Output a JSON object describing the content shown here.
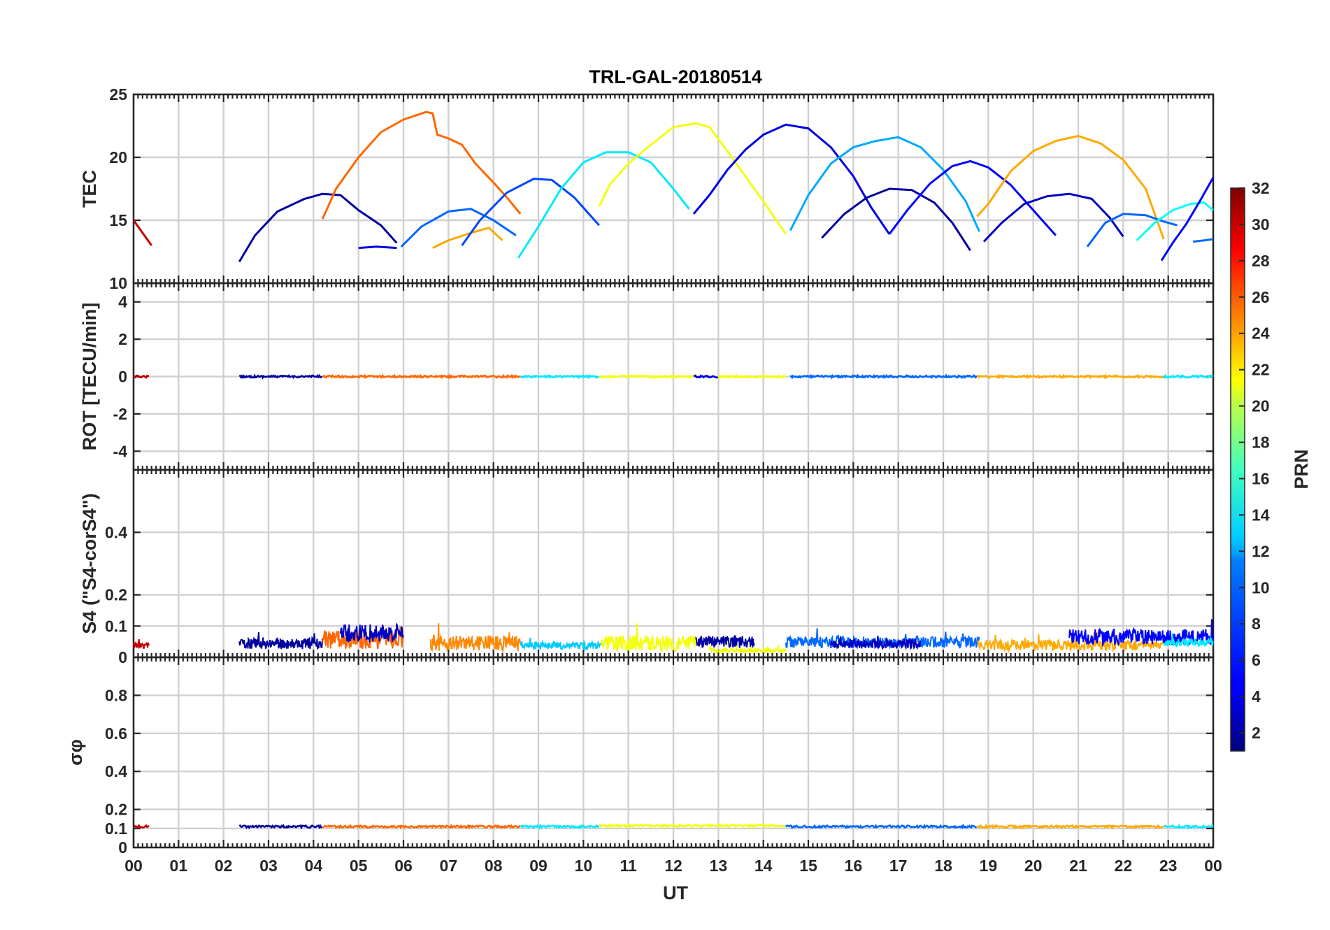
{
  "title": "TRL-GAL-20180514",
  "xlabel": "UT",
  "x_tick_labels": [
    "00",
    "01",
    "02",
    "03",
    "04",
    "05",
    "06",
    "07",
    "08",
    "09",
    "10",
    "11",
    "12",
    "13",
    "14",
    "15",
    "16",
    "17",
    "18",
    "19",
    "20",
    "21",
    "22",
    "23",
    "00"
  ],
  "panels": [
    {
      "ylabel": "TEC",
      "ylim": [
        10,
        25
      ],
      "yticks": [
        10,
        15,
        20,
        25
      ]
    },
    {
      "ylabel": "ROT [TECU/min]",
      "ylim": [
        -5,
        5
      ],
      "yticks": [
        -4,
        -2,
        0,
        2,
        4
      ]
    },
    {
      "ylabel": "S4 (\"S4-corS4\")",
      "ylim": [
        0,
        0.6
      ],
      "yticks": [
        0,
        0.1,
        0.2,
        0.4
      ]
    },
    {
      "ylabel": "σφ",
      "ylim": [
        0,
        1
      ],
      "yticks": [
        0,
        0.1,
        0.2,
        0.4,
        0.6,
        0.8
      ]
    }
  ],
  "colorbar": {
    "label": "PRN",
    "range": [
      1,
      32
    ],
    "ticks": [
      2,
      4,
      6,
      8,
      10,
      12,
      14,
      16,
      18,
      20,
      22,
      24,
      26,
      28,
      30,
      32
    ],
    "colormap": "jet"
  },
  "chart_data": {
    "type": "line",
    "title": "TRL-GAL-20180514",
    "xlabel": "UT",
    "x_range_hours": [
      0,
      24
    ],
    "grid": true,
    "colorbar_label": "PRN",
    "colorbar_range": [
      1,
      32
    ],
    "tec_arcs": [
      {
        "prn": 30,
        "x": [
          0.0,
          0.4
        ],
        "y": [
          15.0,
          13.0
        ]
      },
      {
        "prn": 2,
        "x": [
          2.35,
          2.7,
          3.2,
          3.8,
          4.2,
          4.6,
          5.0,
          5.5,
          5.85
        ],
        "y": [
          11.7,
          13.8,
          15.7,
          16.7,
          17.1,
          17.0,
          15.8,
          14.6,
          13.2
        ]
      },
      {
        "prn": 25,
        "x": [
          4.2,
          4.5,
          5.0,
          5.5,
          6.0,
          6.5,
          6.65,
          6.75,
          7.0,
          7.3,
          7.6,
          8.0,
          8.3,
          8.6
        ],
        "y": [
          15.1,
          17.5,
          20.0,
          22.0,
          23.0,
          23.6,
          23.5,
          21.8,
          21.5,
          21.0,
          19.5,
          18.0,
          16.8,
          15.5
        ]
      },
      {
        "prn": 4,
        "x": [
          5.0,
          5.4,
          5.85
        ],
        "y": [
          12.8,
          12.9,
          12.8
        ]
      },
      {
        "prn": 8,
        "x": [
          5.95,
          6.4,
          7.0,
          7.5,
          8.0,
          8.5
        ],
        "y": [
          12.9,
          14.5,
          15.7,
          15.9,
          15.0,
          13.8
        ]
      },
      {
        "prn": 23,
        "x": [
          6.65,
          7.0,
          7.5,
          7.9,
          8.2
        ],
        "y": [
          12.8,
          13.4,
          14.0,
          14.4,
          13.4
        ]
      },
      {
        "prn": 7,
        "x": [
          7.3,
          7.7,
          8.3,
          8.9,
          9.3,
          9.8,
          10.35
        ],
        "y": [
          13.0,
          15.0,
          17.2,
          18.3,
          18.2,
          16.8,
          14.6
        ]
      },
      {
        "prn": 12,
        "x": [
          8.55,
          9.0,
          9.5,
          10.0,
          10.5,
          11.0,
          11.5,
          12.0,
          12.35
        ],
        "y": [
          12.0,
          14.5,
          17.5,
          19.6,
          20.4,
          20.4,
          19.6,
          17.5,
          15.9
        ]
      },
      {
        "prn": 20,
        "x": [
          10.35,
          10.6,
          11.0,
          11.5,
          12.0,
          12.5,
          12.8,
          13.2,
          13.6,
          14.0,
          14.5
        ],
        "y": [
          16.1,
          17.9,
          19.5,
          21.0,
          22.4,
          22.7,
          22.4,
          20.5,
          18.5,
          16.5,
          13.9
        ]
      },
      {
        "prn": 4,
        "x": [
          12.45,
          12.8,
          13.2,
          13.6,
          14.0,
          14.5,
          15.0,
          15.5,
          16.0,
          16.4,
          16.8
        ],
        "y": [
          15.5,
          17.0,
          19.0,
          20.6,
          21.8,
          22.6,
          22.3,
          20.8,
          18.5,
          16.0,
          13.9
        ]
      },
      {
        "prn": 10,
        "x": [
          14.6,
          15.0,
          15.5,
          16.0,
          16.5,
          17.0,
          17.5,
          18.0,
          18.5,
          18.8
        ],
        "y": [
          14.2,
          17.0,
          19.5,
          20.8,
          21.3,
          21.6,
          20.8,
          19.0,
          16.5,
          14.1
        ]
      },
      {
        "prn": 2,
        "x": [
          15.3,
          15.8,
          16.3,
          16.8,
          17.3,
          17.8,
          18.2,
          18.6
        ],
        "y": [
          13.6,
          15.5,
          16.8,
          17.5,
          17.4,
          16.4,
          14.8,
          12.6
        ]
      },
      {
        "prn": 5,
        "x": [
          16.8,
          17.2,
          17.7,
          18.2,
          18.6,
          19.0,
          19.5,
          19.9,
          20.5
        ],
        "y": [
          13.9,
          15.8,
          17.9,
          19.3,
          19.7,
          19.2,
          17.8,
          16.2,
          13.8
        ]
      },
      {
        "prn": 23,
        "x": [
          18.75,
          19.0,
          19.5,
          20.0,
          20.5,
          21.0,
          21.5,
          22.0,
          22.5,
          22.9
        ],
        "y": [
          15.3,
          16.3,
          18.9,
          20.5,
          21.3,
          21.7,
          21.1,
          19.8,
          17.5,
          13.5
        ]
      },
      {
        "prn": 3,
        "x": [
          18.9,
          19.3,
          19.8,
          20.3,
          20.8,
          21.3,
          21.7,
          22.0
        ],
        "y": [
          13.3,
          14.8,
          16.3,
          16.9,
          17.1,
          16.7,
          15.2,
          13.7
        ]
      },
      {
        "prn": 8,
        "x": [
          21.2,
          21.6,
          22.0,
          22.5,
          22.9,
          23.2
        ],
        "y": [
          12.9,
          14.8,
          15.5,
          15.4,
          14.9,
          14.6
        ]
      },
      {
        "prn": 13,
        "x": [
          22.3,
          22.7,
          23.1,
          23.5,
          23.8,
          24.0
        ],
        "y": [
          13.4,
          14.8,
          15.8,
          16.3,
          16.4,
          15.8
        ]
      },
      {
        "prn": 5,
        "x": [
          22.85,
          23.1,
          23.4,
          23.7,
          24.0
        ],
        "y": [
          11.8,
          13.2,
          14.7,
          16.5,
          18.4
        ]
      },
      {
        "prn": 8,
        "x": [
          23.55,
          23.8,
          24.0
        ],
        "y": [
          13.3,
          13.4,
          13.5
        ]
      }
    ],
    "rot_segments": [
      {
        "prn": 30,
        "x": [
          0.0,
          0.35
        ],
        "y": [
          0,
          0
        ]
      },
      {
        "prn": 2,
        "x": [
          2.35,
          4.2
        ],
        "y": [
          0,
          0
        ]
      },
      {
        "prn": 25,
        "x": [
          4.2,
          8.6
        ],
        "y": [
          0,
          0
        ]
      },
      {
        "prn": 12,
        "x": [
          8.6,
          10.35
        ],
        "y": [
          0,
          0
        ]
      },
      {
        "prn": 20,
        "x": [
          10.35,
          12.45
        ],
        "y": [
          0,
          0
        ]
      },
      {
        "prn": 4,
        "x": [
          12.45,
          13.0
        ],
        "y": [
          0,
          0
        ]
      },
      {
        "prn": 20,
        "x": [
          13.0,
          14.5
        ],
        "y": [
          0,
          0
        ]
      },
      {
        "prn": 8,
        "x": [
          14.6,
          18.75
        ],
        "y": [
          0,
          0
        ]
      },
      {
        "prn": 23,
        "x": [
          18.75,
          22.9
        ],
        "y": [
          0,
          0
        ]
      },
      {
        "prn": 12,
        "x": [
          22.9,
          24.0
        ],
        "y": [
          0,
          0
        ]
      }
    ],
    "s4_segments": [
      {
        "prn": 30,
        "x": [
          0.0,
          0.35
        ],
        "base": 0.035,
        "spread": 0.02
      },
      {
        "prn": 2,
        "x": [
          2.35,
          4.2
        ],
        "base": 0.04,
        "spread": 0.035
      },
      {
        "prn": 25,
        "x": [
          4.2,
          6.0
        ],
        "base": 0.05,
        "spread": 0.06
      },
      {
        "prn": 3,
        "x": [
          4.6,
          6.0
        ],
        "base": 0.07,
        "spread": 0.06
      },
      {
        "prn": 24,
        "x": [
          6.6,
          8.6
        ],
        "base": 0.04,
        "spread": 0.05
      },
      {
        "prn": 11,
        "x": [
          8.6,
          10.4
        ],
        "base": 0.035,
        "spread": 0.025
      },
      {
        "prn": 20,
        "x": [
          10.4,
          12.5
        ],
        "base": 0.04,
        "spread": 0.05
      },
      {
        "prn": 2,
        "x": [
          12.5,
          13.8
        ],
        "base": 0.045,
        "spread": 0.04
      },
      {
        "prn": 20,
        "x": [
          12.8,
          14.5
        ],
        "base": 0.02,
        "spread": 0.015
      },
      {
        "prn": 8,
        "x": [
          14.5,
          18.8
        ],
        "base": 0.045,
        "spread": 0.035
      },
      {
        "prn": 3,
        "x": [
          15.5,
          17.5
        ],
        "base": 0.04,
        "spread": 0.03
      },
      {
        "prn": 23,
        "x": [
          18.75,
          22.9
        ],
        "base": 0.035,
        "spread": 0.035
      },
      {
        "prn": 5,
        "x": [
          20.8,
          24.0
        ],
        "base": 0.06,
        "spread": 0.05
      },
      {
        "prn": 12,
        "x": [
          22.9,
          24.0
        ],
        "base": 0.045,
        "spread": 0.025
      }
    ],
    "sigma_phi_segments": [
      {
        "prn": 30,
        "x": [
          0.0,
          0.35
        ],
        "y": 0.11
      },
      {
        "prn": 2,
        "x": [
          2.35,
          4.2
        ],
        "y": 0.11
      },
      {
        "prn": 25,
        "x": [
          4.2,
          8.6
        ],
        "y": 0.11
      },
      {
        "prn": 12,
        "x": [
          8.6,
          10.35
        ],
        "y": 0.11
      },
      {
        "prn": 20,
        "x": [
          10.35,
          14.5
        ],
        "y": 0.115
      },
      {
        "prn": 8,
        "x": [
          14.5,
          18.75
        ],
        "y": 0.11
      },
      {
        "prn": 23,
        "x": [
          18.75,
          22.9
        ],
        "y": 0.11
      },
      {
        "prn": 12,
        "x": [
          22.9,
          24.0
        ],
        "y": 0.11
      }
    ]
  }
}
